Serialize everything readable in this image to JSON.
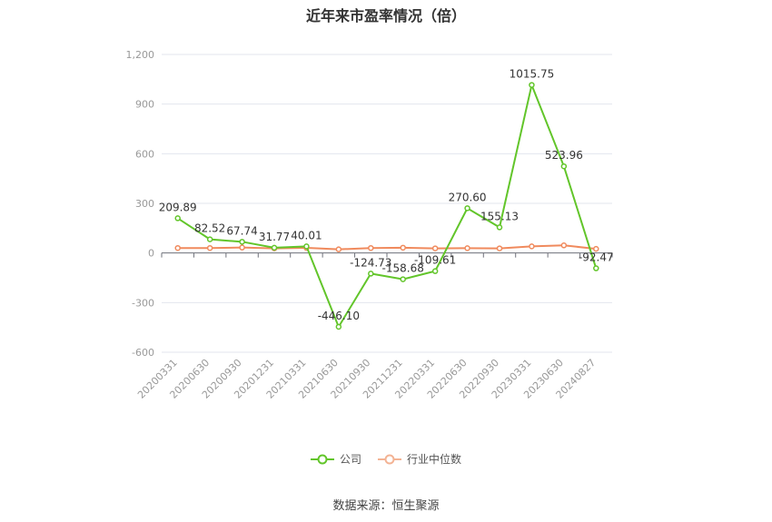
{
  "chart_data": {
    "type": "line",
    "title": "近年来市盈率情况（倍）",
    "categories": [
      "20200331",
      "20200630",
      "20200930",
      "20201231",
      "20210331",
      "20210630",
      "20210930",
      "20211231",
      "20220331",
      "20220630",
      "20220930",
      "20230331",
      "20230630",
      "20240827"
    ],
    "ylim": [
      -600,
      1200
    ],
    "yticks": [
      -600,
      -300,
      0,
      300,
      600,
      900,
      1200
    ],
    "ytick_labels": [
      "-600",
      "-300",
      "0",
      "300",
      "600",
      "900",
      "1,200"
    ],
    "grid": true,
    "legend_position": "bottom",
    "series": [
      {
        "name": "公司",
        "color": "#62c52a",
        "values": [
          209.89,
          82.52,
          67.74,
          31.77,
          40.01,
          -446.1,
          -124.73,
          -158.68,
          -109.61,
          270.6,
          155.13,
          1015.75,
          523.96,
          -92.47
        ],
        "labels": [
          "209.89",
          "82.52",
          "67.74",
          "31.77",
          "40.01",
          "-446.10",
          "-124.73",
          "-158.68",
          "-109.61",
          "270.60",
          "155.13",
          "1015.75",
          "523.96",
          "-92.47"
        ]
      },
      {
        "name": "行业中位数",
        "color": "#f08a5d",
        "values": [
          30,
          30,
          33,
          28,
          31,
          22,
          30,
          32,
          28,
          29,
          28,
          40,
          46,
          25
        ]
      }
    ]
  },
  "source_text": "数据来源：恒生聚源"
}
